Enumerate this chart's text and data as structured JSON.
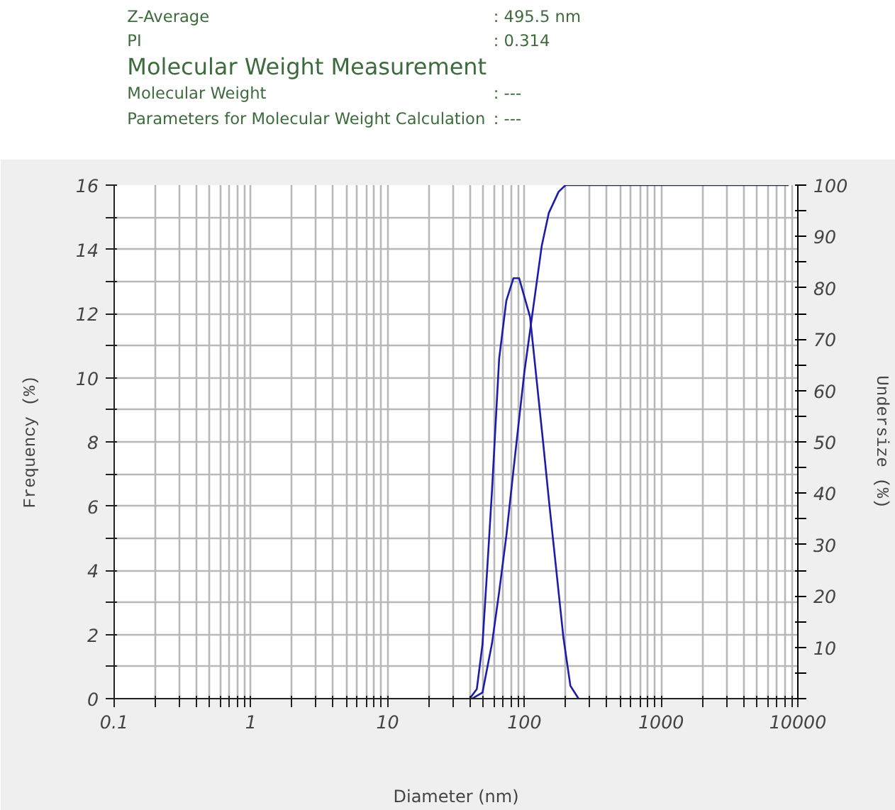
{
  "chart_data": {
    "type": "line",
    "title": "Molecular Weight Measurement",
    "annotations": [
      "Z-Average",
      ": 495.5 nm",
      "PI",
      ": 0.314",
      "Molecular Weight",
      ": ---",
      "Parameters for Molecular Weight Calculation",
      ": ---"
    ],
    "xlabel": "Diameter (nm)",
    "ylabel": "Frequency (%)",
    "y2label": "Undersize (%)",
    "log": "x",
    "grid": true,
    "xlim": [
      0.1,
      10000
    ],
    "xticks": [
      {
        "value": 0.1,
        "label": "0.1"
      },
      {
        "value": 0.2,
        "label": null
      },
      {
        "value": 0.3,
        "label": null
      },
      {
        "value": 0.4,
        "label": null
      },
      {
        "value": 0.5,
        "label": null
      },
      {
        "value": 0.6,
        "label": null
      },
      {
        "value": 0.7,
        "label": null
      },
      {
        "value": 0.8,
        "label": null
      },
      {
        "value": 0.9,
        "label": null
      },
      1,
      {
        "value": 2,
        "label": null
      },
      {
        "value": 3,
        "label": null
      },
      {
        "value": 4,
        "label": null
      },
      {
        "value": 5,
        "label": null
      },
      {
        "value": 6,
        "label": null
      },
      {
        "value": 7,
        "label": null
      },
      {
        "value": 8,
        "label": null
      },
      {
        "value": 9,
        "label": null
      },
      10,
      {
        "value": 20,
        "label": null
      },
      {
        "value": 30,
        "label": null
      },
      {
        "value": 40,
        "label": null
      },
      {
        "value": 50,
        "label": null
      },
      {
        "value": 60,
        "label": null
      },
      {
        "value": 70,
        "label": null
      },
      {
        "value": 80,
        "label": null
      },
      {
        "value": 90,
        "label": null
      },
      100,
      {
        "value": 200,
        "label": null
      },
      {
        "value": 300,
        "label": null
      },
      {
        "value": 400,
        "label": null
      },
      {
        "value": 500,
        "label": null
      },
      {
        "value": 600,
        "label": null
      },
      {
        "value": 700,
        "label": null
      },
      {
        "value": 800,
        "label": null
      },
      {
        "value": 900,
        "label": null
      },
      1000,
      {
        "value": 2000,
        "label": null
      },
      {
        "value": 3000,
        "label": null
      },
      {
        "value": 4000,
        "label": null
      },
      {
        "value": 5000,
        "label": null
      },
      {
        "value": 6000,
        "label": null
      },
      {
        "value": 7000,
        "label": null
      },
      {
        "value": 8000,
        "label": null
      },
      {
        "value": 9000,
        "label": null
      },
      10000
    ],
    "ylim": [
      0,
      16
    ],
    "yticks": [
      0,
      {
        "value": 1,
        "label": null
      },
      2,
      {
        "value": 3,
        "label": null
      },
      4,
      {
        "value": 5,
        "label": null
      },
      6,
      {
        "value": 7,
        "label": null
      },
      8,
      {
        "value": 9,
        "label": null
      },
      10,
      {
        "value": 11,
        "label": null
      },
      12,
      {
        "value": 13,
        "label": null
      },
      14,
      {
        "value": 15,
        "label": null
      },
      16
    ],
    "y2lim": [
      0,
      100
    ],
    "y2ticks": [
      {
        "value": 0,
        "label": null
      },
      {
        "value": 5,
        "label": null
      },
      10,
      {
        "value": 15,
        "label": null
      },
      20,
      {
        "value": 25,
        "label": null
      },
      30,
      {
        "value": 35,
        "label": null
      },
      40,
      {
        "value": 45,
        "label": null
      },
      50,
      {
        "value": 55,
        "label": null
      },
      60,
      {
        "value": 65,
        "label": null
      },
      70,
      {
        "value": 75,
        "label": null
      },
      80,
      {
        "value": 85,
        "label": null
      },
      90,
      {
        "value": 95,
        "label": null
      },
      100
    ],
    "series": [
      {
        "color": "#1c1ca8",
        "x": [
          39.8,
          44.9,
          49.4,
          53.6,
          58,
          65.4,
          73.8,
          83.2,
          91.5,
          110,
          137,
          151,
          193,
          217,
          249
        ],
        "values": [
          0,
          0.3,
          1.7,
          4.1,
          6.5,
          10.6,
          12.4,
          13.1,
          13.1,
          11.9,
          8.0,
          6.2,
          1.9,
          0.4,
          0
        ]
      },
      {
        "color": "#1c1ca8",
        "axis": "y2",
        "x": [
          41.4,
          49.4,
          58,
          65.4,
          73.8,
          83.2,
          90,
          100,
          114,
          134,
          151,
          178,
          200,
          8580
        ],
        "values": [
          0,
          1.2,
          10.8,
          20.8,
          31.7,
          44.5,
          52.7,
          63.6,
          74.6,
          88.2,
          94.6,
          98.7,
          100,
          100
        ]
      }
    ]
  }
}
